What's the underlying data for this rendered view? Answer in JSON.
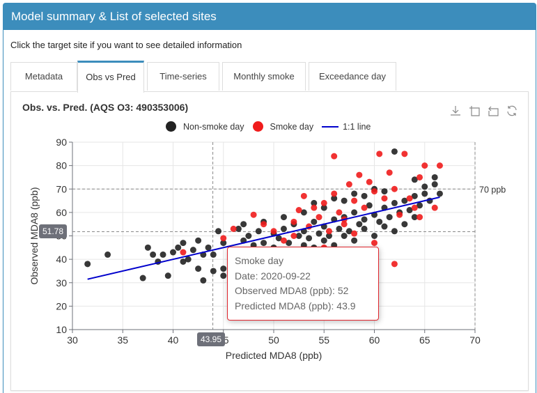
{
  "panel": {
    "title": "Model summary & List of selected sites",
    "subtitle": "Click the target site if you want to see detailed information"
  },
  "tabs": [
    {
      "label": "Metadata",
      "active": false
    },
    {
      "label": "Obs vs Pred",
      "active": true
    },
    {
      "label": "Time-series",
      "active": false
    },
    {
      "label": "Monthly smoke",
      "active": false
    },
    {
      "label": "Exceedance day",
      "active": false
    }
  ],
  "toolbox": [
    "download-icon",
    "zoom-select-icon",
    "zoom-reset-icon",
    "restore-icon"
  ],
  "tooltip": {
    "series": "Smoke day",
    "date": "Date: 2020-09-22",
    "observed": "Observed MDA8 (ppb): 52",
    "predicted": "Predicted MDA8 (ppb): 43.9"
  },
  "pointer": {
    "x_label": "43.95",
    "y_label": "51.78"
  },
  "colors": {
    "header": "#3c8dbc",
    "non_smoke": "#222222",
    "smoke": "#f01c1c",
    "line": "#0000cc",
    "tooltip_border": "#e0242c"
  },
  "chart_data": {
    "type": "scatter",
    "title": "Obs. vs. Pred. (AQS O3: 490353006)",
    "xlabel": "Predicted MDA8 (ppb)",
    "ylabel": "Observed MDA8 (ppb)",
    "xlim": [
      30,
      70
    ],
    "ylim": [
      10,
      90
    ],
    "xticks": [
      "30",
      "35",
      "40",
      "45",
      "50",
      "55",
      "60",
      "65",
      "70"
    ],
    "yticks": [
      "10",
      "20",
      "30",
      "40",
      "50",
      "60",
      "70",
      "80",
      "90"
    ],
    "grid": true,
    "legend_position": "top-center",
    "legend": [
      "Non-smoke day",
      "Smoke day",
      "1:1 line"
    ],
    "threshold": {
      "value": 70,
      "label": "70 ppb"
    },
    "fit_line": {
      "name": "1:1 line",
      "x": [
        31.5,
        66.5
      ],
      "y": [
        31.5,
        66.5
      ]
    },
    "series": [
      {
        "name": "Non-smoke day",
        "points": [
          [
            31.5,
            38
          ],
          [
            33.5,
            42
          ],
          [
            37,
            32
          ],
          [
            37.5,
            45
          ],
          [
            38,
            42
          ],
          [
            38.5,
            39
          ],
          [
            39,
            42
          ],
          [
            39.5,
            33
          ],
          [
            40,
            43
          ],
          [
            40.5,
            45
          ],
          [
            41,
            47
          ],
          [
            41,
            39
          ],
          [
            41.5,
            40
          ],
          [
            42,
            44
          ],
          [
            42.5,
            48
          ],
          [
            42.5,
            36
          ],
          [
            43,
            42
          ],
          [
            43,
            31
          ],
          [
            43.5,
            45
          ],
          [
            44,
            42
          ],
          [
            44.5,
            52
          ],
          [
            45,
            47
          ],
          [
            45,
            36
          ],
          [
            46,
            44
          ],
          [
            46.5,
            53
          ],
          [
            47,
            48
          ],
          [
            47.5,
            50
          ],
          [
            48,
            46
          ],
          [
            48.5,
            52
          ],
          [
            49,
            47
          ],
          [
            49.5,
            44
          ],
          [
            50,
            51
          ],
          [
            50.5,
            49
          ],
          [
            51,
            53
          ],
          [
            51.5,
            47
          ],
          [
            52,
            55
          ],
          [
            52.5,
            50
          ],
          [
            53,
            52
          ],
          [
            53.5,
            49
          ],
          [
            54,
            56
          ],
          [
            54.5,
            51
          ],
          [
            55,
            54
          ],
          [
            55.5,
            50
          ],
          [
            56,
            57
          ],
          [
            56.5,
            53
          ],
          [
            57,
            58
          ],
          [
            57.5,
            52
          ],
          [
            58,
            60
          ],
          [
            58.5,
            55
          ],
          [
            59,
            57
          ],
          [
            59.5,
            63
          ],
          [
            60,
            59
          ],
          [
            60.5,
            56
          ],
          [
            61,
            62
          ],
          [
            61.5,
            58
          ],
          [
            62,
            64
          ],
          [
            62.5,
            60
          ],
          [
            63,
            65
          ],
          [
            63.5,
            61
          ],
          [
            64,
            67
          ],
          [
            64.5,
            63
          ],
          [
            65,
            68
          ],
          [
            65.5,
            65
          ],
          [
            66,
            72
          ],
          [
            66.5,
            68
          ],
          [
            52,
            42
          ],
          [
            54,
            45
          ],
          [
            56,
            46
          ],
          [
            58,
            48
          ],
          [
            60,
            50
          ],
          [
            57,
            65
          ],
          [
            59,
            67
          ],
          [
            61,
            69
          ],
          [
            62,
            86
          ],
          [
            55,
            62
          ],
          [
            53,
            60
          ],
          [
            51,
            58
          ],
          [
            49,
            56
          ],
          [
            47,
            55
          ],
          [
            50,
            45
          ],
          [
            46,
            40
          ],
          [
            48,
            41
          ],
          [
            44,
            35
          ],
          [
            45,
            33
          ],
          [
            62,
            52
          ],
          [
            64,
            58
          ],
          [
            63,
            55
          ],
          [
            60,
            70
          ],
          [
            58,
            68
          ],
          [
            56,
            66
          ],
          [
            54,
            64
          ],
          [
            65,
            71
          ],
          [
            66,
            75
          ],
          [
            64,
            74
          ],
          [
            59,
            53
          ],
          [
            57,
            50
          ],
          [
            55,
            48
          ],
          [
            53,
            46
          ],
          [
            51,
            44
          ],
          [
            61,
            54
          ]
        ]
      },
      {
        "name": "Smoke day",
        "points": [
          [
            41,
            43
          ],
          [
            45,
            49
          ],
          [
            46,
            53
          ],
          [
            48,
            59
          ],
          [
            49,
            55
          ],
          [
            50,
            52
          ],
          [
            51,
            48
          ],
          [
            52,
            56
          ],
          [
            52.5,
            61
          ],
          [
            53,
            67
          ],
          [
            53.5,
            54
          ],
          [
            54,
            62
          ],
          [
            54.5,
            58
          ],
          [
            55,
            64
          ],
          [
            55.5,
            52
          ],
          [
            56,
            68
          ],
          [
            56,
            84
          ],
          [
            56.5,
            60
          ],
          [
            57,
            57
          ],
          [
            57.5,
            72
          ],
          [
            58,
            65
          ],
          [
            58.5,
            76
          ],
          [
            59,
            62
          ],
          [
            59.5,
            73
          ],
          [
            60,
            69
          ],
          [
            60.5,
            85
          ],
          [
            61,
            66
          ],
          [
            61.5,
            77
          ],
          [
            62,
            70
          ],
          [
            62.5,
            59
          ],
          [
            63,
            85
          ],
          [
            63.5,
            66
          ],
          [
            64,
            62
          ],
          [
            64.5,
            75
          ],
          [
            65,
            80
          ],
          [
            66,
            62
          ],
          [
            66.5,
            80
          ],
          [
            62,
            38
          ],
          [
            64.5,
            58
          ],
          [
            60,
            47
          ],
          [
            55,
            45
          ],
          [
            52,
            50
          ],
          [
            58,
            51
          ],
          [
            50,
            40
          ],
          [
            57,
            55
          ]
        ]
      }
    ]
  }
}
